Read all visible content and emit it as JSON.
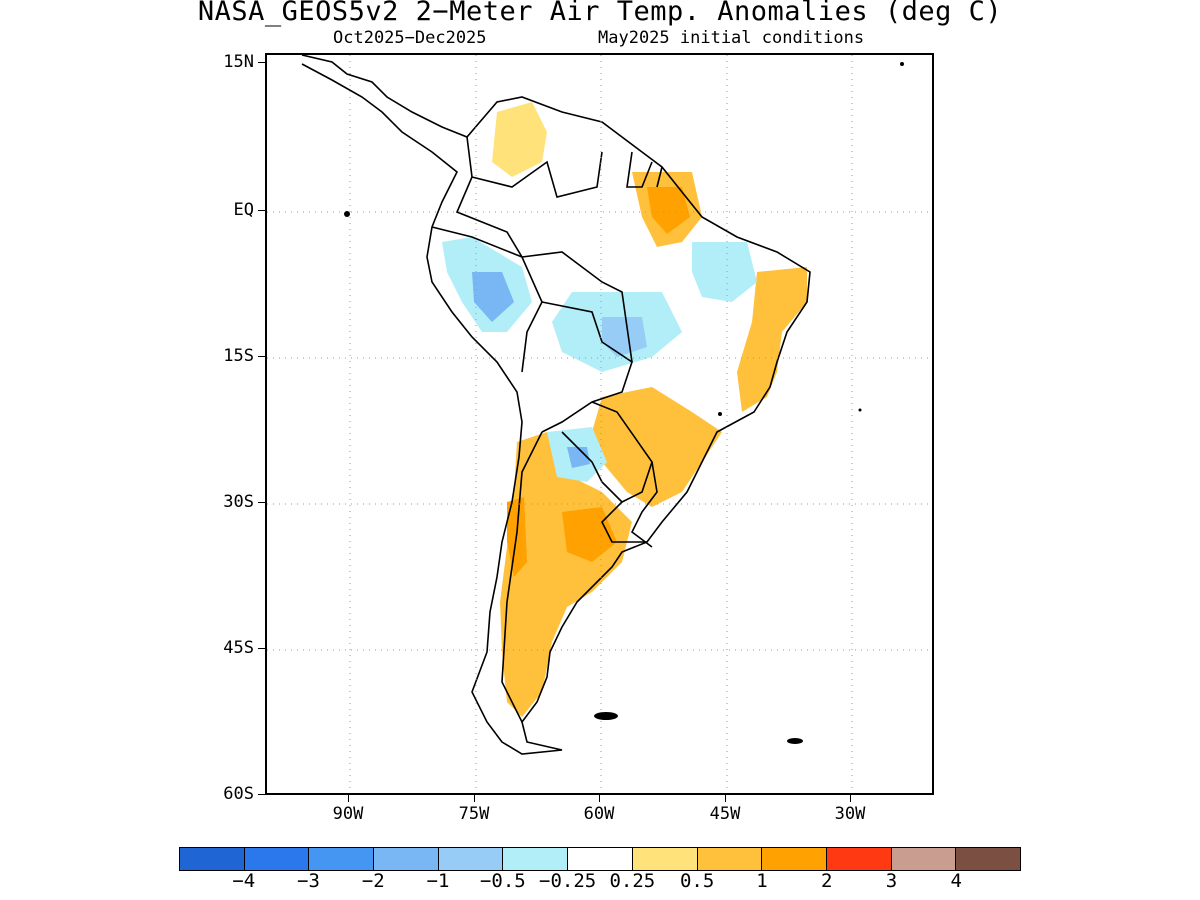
{
  "header": {
    "title": "NASA_GEOS5v2 2−Meter Air Temp. Anomalies (deg C)",
    "subtitle_left": "Oct2025−Dec2025",
    "subtitle_right": "May2025 initial conditions"
  },
  "map": {
    "region": "South America",
    "lat_range": [
      -60,
      15
    ],
    "lon_range": [
      -100,
      -20
    ],
    "lat_labels": [
      "15N",
      "EQ",
      "15S",
      "30S",
      "45S",
      "60S"
    ],
    "lon_labels": [
      "90W",
      "75W",
      "60W",
      "45W",
      "30W"
    ],
    "grid_lines": "dotted"
  },
  "colorbar": {
    "colors": [
      "#1f65d4",
      "#2a78eb",
      "#4596f2",
      "#78b6f4",
      "#97ccf7",
      "#b1eef7",
      "#ffffff",
      "#ffe27a",
      "#ffc03c",
      "#ffa100",
      "#ff3a12",
      "#c99d8f",
      "#7b4f42"
    ],
    "labels": [
      "−4",
      "−3",
      "−2",
      "−1",
      "−0.5",
      "−0.25",
      "0.25",
      "0.5",
      "1",
      "2",
      "3",
      "4"
    ]
  }
}
